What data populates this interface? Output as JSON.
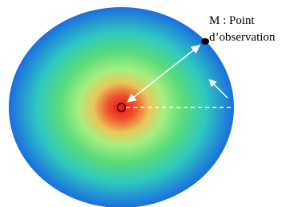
{
  "label": {
    "line1": "M : Point",
    "line2": "d’observation"
  }
}
